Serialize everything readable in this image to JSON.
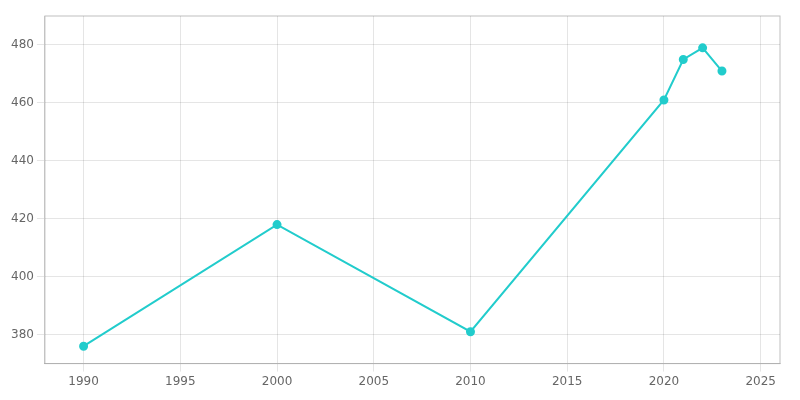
{
  "chart_data": {
    "type": "line",
    "x": [
      1990,
      2000,
      2010,
      2020,
      2021,
      2022,
      2023
    ],
    "values": [
      376,
      418,
      381,
      461,
      475,
      479,
      471
    ],
    "color": "#22CCCC",
    "marker": "circle",
    "xlim": [
      1988,
      2026
    ],
    "ylim": [
      370,
      490
    ],
    "xticks": [
      1990,
      1995,
      2000,
      2005,
      2010,
      2015,
      2020,
      2025
    ],
    "yticks": [
      380,
      400,
      420,
      440,
      460,
      480
    ],
    "grid": true
  }
}
